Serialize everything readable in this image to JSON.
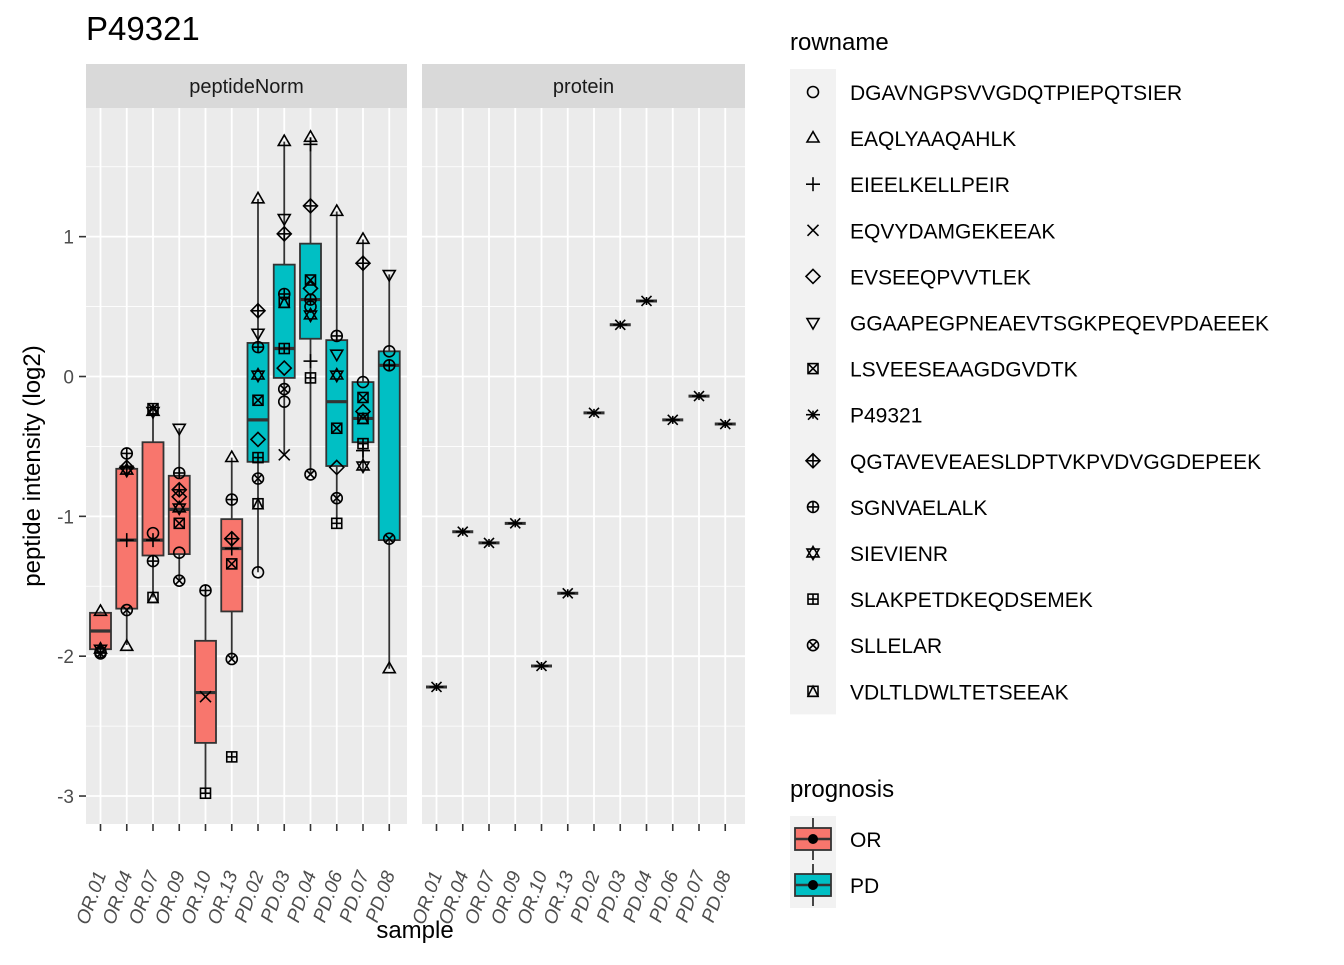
{
  "chart_data": {
    "type": "box",
    "title": "P49321",
    "xlabel": "sample",
    "ylabel": "peptide intensity (log2)",
    "ylim": [
      -3.2,
      1.92
    ],
    "y_ticks": [
      -3,
      -2,
      -1,
      0,
      1
    ],
    "grid": true,
    "facets": [
      "peptideNorm",
      "protein"
    ],
    "samples": [
      "OR.01",
      "OR.04",
      "OR.07",
      "OR.09",
      "OR.10",
      "OR.13",
      "PD.02",
      "PD.03",
      "PD.04",
      "PD.06",
      "PD.07",
      "PD.08"
    ],
    "prognosis": [
      "OR",
      "OR",
      "OR",
      "OR",
      "OR",
      "OR",
      "PD",
      "PD",
      "PD",
      "PD",
      "PD",
      "PD"
    ],
    "fill_colors": {
      "OR": "#F8766D",
      "PD": "#00BFC4"
    },
    "legend_placement": "right",
    "legend_rowname": {
      "title": "rowname",
      "entries": [
        {
          "label": "DGAVNGPSVVGDQTPIEPQTSIER",
          "shape": "circle"
        },
        {
          "label": "EAQLYAAQAHLK",
          "shape": "triangle-up"
        },
        {
          "label": "EIEELKELLPEIR",
          "shape": "plus"
        },
        {
          "label": "EQVYDAMGEKEEAK",
          "shape": "cross"
        },
        {
          "label": "EVSEEQPVVTLEK",
          "shape": "diamond"
        },
        {
          "label": "GGAAPEGPNEAEVTSGKPEQEVPDAEEEK",
          "shape": "triangle-down"
        },
        {
          "label": "LSVEESEAAGDGVDTK",
          "shape": "square-cross"
        },
        {
          "label": "P49321",
          "shape": "asterisk"
        },
        {
          "label": "QGTAVEVEAESLDPTVKPVDVGGDEPEEK",
          "shape": "diamond-plus"
        },
        {
          "label": "SGNVAELALK",
          "shape": "circle-plus"
        },
        {
          "label": "SIEVIENR",
          "shape": "star-of-david"
        },
        {
          "label": "SLAKPETDKEQDSEMEK",
          "shape": "square-plus"
        },
        {
          "label": "SLLELAR",
          "shape": "circle-cross"
        },
        {
          "label": "VDLTLDWLTETSEEAK",
          "shape": "square-triangle"
        }
      ]
    },
    "legend_prognosis": {
      "title": "prognosis",
      "entries": [
        {
          "label": "OR",
          "color": "#F8766D"
        },
        {
          "label": "PD",
          "color": "#00BFC4"
        }
      ]
    },
    "peptideNorm_boxes": [
      {
        "sample": "OR.01",
        "prognosis": "OR",
        "min": -1.96,
        "q1": -1.95,
        "median": -1.82,
        "q3": -1.69,
        "max": -1.68
      },
      {
        "sample": "OR.04",
        "prognosis": "OR",
        "min": -1.92,
        "q1": -1.66,
        "median": -1.17,
        "q3": -0.66,
        "max": -0.55
      },
      {
        "sample": "OR.07",
        "prognosis": "OR",
        "min": -1.58,
        "q1": -1.28,
        "median": -1.17,
        "q3": -0.47,
        "max": -0.23
      },
      {
        "sample": "OR.09",
        "prognosis": "OR",
        "min": -1.46,
        "q1": -1.27,
        "median": -0.95,
        "q3": -0.71,
        "max": -0.37
      },
      {
        "sample": "OR.10",
        "prognosis": "OR",
        "min": -2.98,
        "q1": -2.62,
        "median": -2.26,
        "q3": -1.89,
        "max": -1.53
      },
      {
        "sample": "OR.13",
        "prognosis": "OR",
        "min": -2.02,
        "q1": -1.68,
        "median": -1.23,
        "q3": -1.02,
        "max": -0.58
      },
      {
        "sample": "PD.02",
        "prognosis": "PD",
        "min": -1.4,
        "q1": -0.61,
        "median": -0.31,
        "q3": 0.24,
        "max": 1.27
      },
      {
        "sample": "PD.03",
        "prognosis": "PD",
        "min": -0.56,
        "q1": -0.01,
        "median": 0.2,
        "q3": 0.8,
        "max": 1.68
      },
      {
        "sample": "PD.04",
        "prognosis": "PD",
        "min": -0.7,
        "q1": 0.27,
        "median": 0.55,
        "q3": 0.95,
        "max": 1.71
      },
      {
        "sample": "PD.06",
        "prognosis": "PD",
        "min": -1.05,
        "q1": -0.64,
        "median": -0.18,
        "q3": 0.26,
        "max": 1.18
      },
      {
        "sample": "PD.07",
        "prognosis": "PD",
        "min": -0.66,
        "q1": -0.47,
        "median": -0.3,
        "q3": -0.04,
        "max": 0.98
      },
      {
        "sample": "PD.08",
        "prognosis": "PD",
        "min": -2.09,
        "q1": -1.17,
        "median": 0.08,
        "q3": 0.18,
        "max": 0.73
      }
    ],
    "peptideNorm_points": [
      {
        "sample": "OR.01",
        "peptide": "EAQLYAAQAHLK",
        "y": -1.68
      },
      {
        "sample": "OR.01",
        "peptide": "SIEVIENR",
        "y": -1.95
      },
      {
        "sample": "OR.01",
        "peptide": "SGNVAELALK",
        "y": -1.97
      },
      {
        "sample": "OR.01",
        "peptide": "SLLELAR",
        "y": -1.98
      },
      {
        "sample": "OR.04",
        "peptide": "SGNVAELALK",
        "y": -0.55
      },
      {
        "sample": "OR.04",
        "peptide": "QGTAVEVEAESLDPTVKPVDVGGDEPEEK",
        "y": -0.65
      },
      {
        "sample": "OR.04",
        "peptide": "SIEVIENR",
        "y": -0.67
      },
      {
        "sample": "OR.04",
        "peptide": "EIEELKELLPEIR",
        "y": -1.17
      },
      {
        "sample": "OR.04",
        "peptide": "SLLELAR",
        "y": -1.67
      },
      {
        "sample": "OR.04",
        "peptide": "EAQLYAAQAHLK",
        "y": -1.93
      },
      {
        "sample": "OR.07",
        "peptide": "LSVEESEAAGDGVDTK",
        "y": -0.23
      },
      {
        "sample": "OR.07",
        "peptide": "SIEVIENR",
        "y": -0.25
      },
      {
        "sample": "OR.07",
        "peptide": "DGAVNGPSVVGDQTPIEPQTSIER",
        "y": -1.12
      },
      {
        "sample": "OR.07",
        "peptide": "EIEELKELLPEIR",
        "y": -1.17
      },
      {
        "sample": "OR.07",
        "peptide": "SGNVAELALK",
        "y": -1.32
      },
      {
        "sample": "OR.07",
        "peptide": "VDLTLDWLTETSEEAK",
        "y": -1.58
      },
      {
        "sample": "OR.09",
        "peptide": "GGAAPEGPNEAEVTSGKPEQEVPDAEEEK",
        "y": -0.37
      },
      {
        "sample": "OR.09",
        "peptide": "SGNVAELALK",
        "y": -0.69
      },
      {
        "sample": "OR.09",
        "peptide": "QGTAVEVEAESLDPTVKPVDVGGDEPEEK",
        "y": -0.81
      },
      {
        "sample": "OR.09",
        "peptide": "EVSEEQPVVTLEK",
        "y": -0.86
      },
      {
        "sample": "OR.09",
        "peptide": "SIEVIENR",
        "y": -0.94
      },
      {
        "sample": "OR.09",
        "peptide": "LSVEESEAAGDGVDTK",
        "y": -1.05
      },
      {
        "sample": "OR.09",
        "peptide": "DGAVNGPSVVGDQTPIEPQTSIER",
        "y": -1.26
      },
      {
        "sample": "OR.09",
        "peptide": "SLLELAR",
        "y": -1.46
      },
      {
        "sample": "OR.10",
        "peptide": "SGNVAELALK",
        "y": -1.53
      },
      {
        "sample": "OR.10",
        "peptide": "EQVYDAMGEKEEAK",
        "y": -2.29
      },
      {
        "sample": "OR.10",
        "peptide": "SLAKPETDKEQDSEMEK",
        "y": -2.98
      },
      {
        "sample": "OR.13",
        "peptide": "EAQLYAAQAHLK",
        "y": -0.58
      },
      {
        "sample": "OR.13",
        "peptide": "SGNVAELALK",
        "y": -0.88
      },
      {
        "sample": "OR.13",
        "peptide": "QGTAVEVEAESLDPTVKPVDVGGDEPEEK",
        "y": -1.16
      },
      {
        "sample": "OR.13",
        "peptide": "EIEELKELLPEIR",
        "y": -1.23
      },
      {
        "sample": "OR.13",
        "peptide": "LSVEESEAAGDGVDTK",
        "y": -1.34
      },
      {
        "sample": "OR.13",
        "peptide": "SLLELAR",
        "y": -2.02
      },
      {
        "sample": "OR.13",
        "peptide": "SLAKPETDKEQDSEMEK",
        "y": -2.72
      },
      {
        "sample": "PD.02",
        "peptide": "EAQLYAAQAHLK",
        "y": 1.27
      },
      {
        "sample": "PD.02",
        "peptide": "QGTAVEVEAESLDPTVKPVDVGGDEPEEK",
        "y": 0.47
      },
      {
        "sample": "PD.02",
        "peptide": "GGAAPEGPNEAEVTSGKPEQEVPDAEEEK",
        "y": 0.31
      },
      {
        "sample": "PD.02",
        "peptide": "SGNVAELALK",
        "y": 0.21
      },
      {
        "sample": "PD.02",
        "peptide": "SIEVIENR",
        "y": 0.01
      },
      {
        "sample": "PD.02",
        "peptide": "LSVEESEAAGDGVDTK",
        "y": -0.17
      },
      {
        "sample": "PD.02",
        "peptide": "EVSEEQPVVTLEK",
        "y": -0.45
      },
      {
        "sample": "PD.02",
        "peptide": "SLAKPETDKEQDSEMEK",
        "y": -0.58
      },
      {
        "sample": "PD.02",
        "peptide": "SLLELAR",
        "y": -0.73
      },
      {
        "sample": "PD.02",
        "peptide": "VDLTLDWLTETSEEAK",
        "y": -0.91
      },
      {
        "sample": "PD.02",
        "peptide": "DGAVNGPSVVGDQTPIEPQTSIER",
        "y": -1.4
      },
      {
        "sample": "PD.03",
        "peptide": "EAQLYAAQAHLK",
        "y": 1.68
      },
      {
        "sample": "PD.03",
        "peptide": "GGAAPEGPNEAEVTSGKPEQEVPDAEEEK",
        "y": 1.13
      },
      {
        "sample": "PD.03",
        "peptide": "QGTAVEVEAESLDPTVKPVDVGGDEPEEK",
        "y": 1.02
      },
      {
        "sample": "PD.03",
        "peptide": "SGNVAELALK",
        "y": 0.59
      },
      {
        "sample": "PD.03",
        "peptide": "VDLTLDWLTETSEEAK",
        "y": 0.53
      },
      {
        "sample": "PD.03",
        "peptide": "SLAKPETDKEQDSEMEK",
        "y": 0.2
      },
      {
        "sample": "PD.03",
        "peptide": "EVSEEQPVVTLEK",
        "y": 0.06
      },
      {
        "sample": "PD.03",
        "peptide": "SLLELAR",
        "y": -0.09
      },
      {
        "sample": "PD.03",
        "peptide": "DGAVNGPSVVGDQTPIEPQTSIER",
        "y": -0.18
      },
      {
        "sample": "PD.03",
        "peptide": "EQVYDAMGEKEEAK",
        "y": -0.56
      },
      {
        "sample": "PD.04",
        "peptide": "EAQLYAAQAHLK",
        "y": 1.71
      },
      {
        "sample": "PD.04",
        "peptide": "EIEELKELLPEIR",
        "y": 1.66
      },
      {
        "sample": "PD.04",
        "peptide": "QGTAVEVEAESLDPTVKPVDVGGDEPEEK",
        "y": 1.22
      },
      {
        "sample": "PD.04",
        "peptide": "LSVEESEAAGDGVDTK",
        "y": 0.69
      },
      {
        "sample": "PD.04",
        "peptide": "EVSEEQPVVTLEK",
        "y": 0.63
      },
      {
        "sample": "PD.04",
        "peptide": "SGNVAELALK",
        "y": 0.55
      },
      {
        "sample": "PD.04",
        "peptide": "DGAVNGPSVVGDQTPIEPQTSIER",
        "y": 0.5
      },
      {
        "sample": "PD.04",
        "peptide": "SIEVIENR",
        "y": 0.44
      },
      {
        "sample": "PD.04",
        "peptide": "EIEELKELLPEIR",
        "y": 0.11
      },
      {
        "sample": "PD.04",
        "peptide": "SLAKPETDKEQDSEMEK",
        "y": -0.01
      },
      {
        "sample": "PD.04",
        "peptide": "SLLELAR",
        "y": -0.7
      },
      {
        "sample": "PD.06",
        "peptide": "EAQLYAAQAHLK",
        "y": 1.18
      },
      {
        "sample": "PD.06",
        "peptide": "SGNVAELALK",
        "y": 0.29
      },
      {
        "sample": "PD.06",
        "peptide": "GGAAPEGPNEAEVTSGKPEQEVPDAEEEK",
        "y": 0.16
      },
      {
        "sample": "PD.06",
        "peptide": "SIEVIENR",
        "y": 0.01
      },
      {
        "sample": "PD.06",
        "peptide": "LSVEESEAAGDGVDTK",
        "y": -0.37
      },
      {
        "sample": "PD.06",
        "peptide": "EVSEEQPVVTLEK",
        "y": -0.65
      },
      {
        "sample": "PD.06",
        "peptide": "SLLELAR",
        "y": -0.87
      },
      {
        "sample": "PD.06",
        "peptide": "SLAKPETDKEQDSEMEK",
        "y": -1.05
      },
      {
        "sample": "PD.07",
        "peptide": "EAQLYAAQAHLK",
        "y": 0.98
      },
      {
        "sample": "PD.07",
        "peptide": "QGTAVEVEAESLDPTVKPVDVGGDEPEEK",
        "y": 0.81
      },
      {
        "sample": "PD.07",
        "peptide": "DGAVNGPSVVGDQTPIEPQTSIER",
        "y": -0.04
      },
      {
        "sample": "PD.07",
        "peptide": "LSVEESEAAGDGVDTK",
        "y": -0.15
      },
      {
        "sample": "PD.07",
        "peptide": "EVSEEQPVVTLEK",
        "y": -0.25
      },
      {
        "sample": "PD.07",
        "peptide": "VDLTLDWLTETSEEAK",
        "y": -0.3
      },
      {
        "sample": "PD.07",
        "peptide": "SLAKPETDKEQDSEMEK",
        "y": -0.48
      },
      {
        "sample": "PD.07",
        "peptide": "EIEELKELLPEIR",
        "y": -0.53
      },
      {
        "sample": "PD.07",
        "peptide": "SIEVIENR",
        "y": -0.64
      },
      {
        "sample": "PD.08",
        "peptide": "GGAAPEGPNEAEVTSGKPEQEVPDAEEEK",
        "y": 0.73
      },
      {
        "sample": "PD.08",
        "peptide": "DGAVNGPSVVGDQTPIEPQTSIER",
        "y": 0.18
      },
      {
        "sample": "PD.08",
        "peptide": "SGNVAELALK",
        "y": 0.08
      },
      {
        "sample": "PD.08",
        "peptide": "SLLELAR",
        "y": -1.16
      },
      {
        "sample": "PD.08",
        "peptide": "EAQLYAAQAHLK",
        "y": -2.09
      }
    ],
    "protein_values": [
      {
        "sample": "OR.01",
        "y": -2.22
      },
      {
        "sample": "OR.04",
        "y": -1.11
      },
      {
        "sample": "OR.07",
        "y": -1.19
      },
      {
        "sample": "OR.09",
        "y": -1.05
      },
      {
        "sample": "OR.10",
        "y": -2.07
      },
      {
        "sample": "OR.13",
        "y": -1.55
      },
      {
        "sample": "PD.02",
        "y": -0.26
      },
      {
        "sample": "PD.03",
        "y": 0.37
      },
      {
        "sample": "PD.04",
        "y": 0.54
      },
      {
        "sample": "PD.06",
        "y": -0.31
      },
      {
        "sample": "PD.07",
        "y": -0.14
      },
      {
        "sample": "PD.08",
        "y": -0.34
      }
    ]
  }
}
